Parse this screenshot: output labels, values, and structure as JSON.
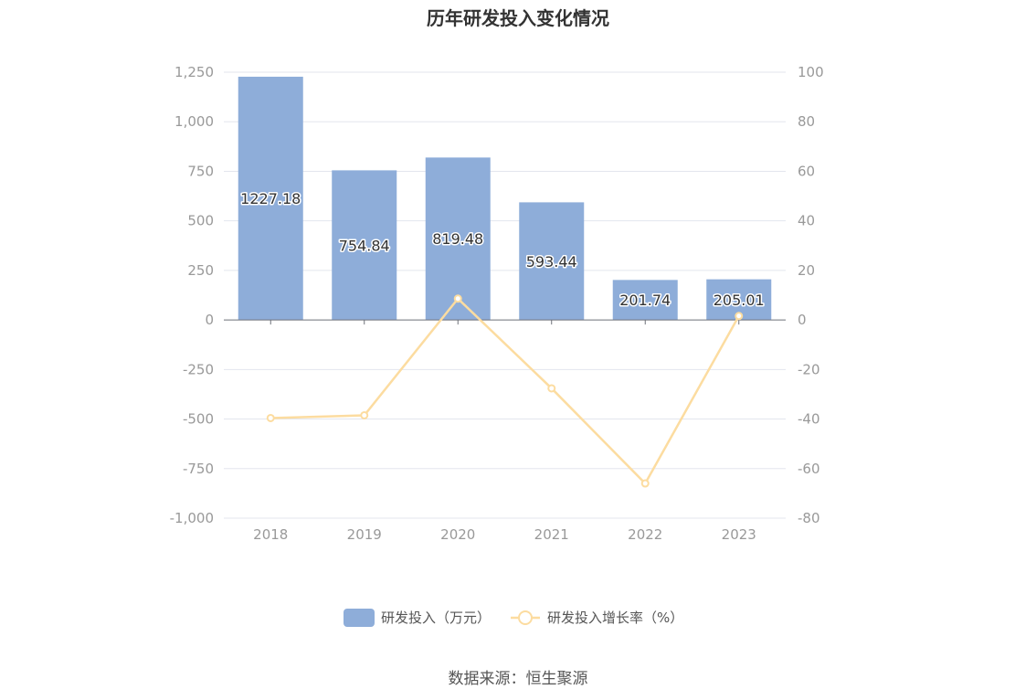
{
  "chart_data": {
    "type": "bar",
    "title": "历年研发投入变化情况",
    "categories": [
      "2018",
      "2019",
      "2020",
      "2021",
      "2022",
      "2023"
    ],
    "series": [
      {
        "name": "研发投入（万元）",
        "type": "bar",
        "axis": "left",
        "values": [
          1227.18,
          754.84,
          819.48,
          593.44,
          201.74,
          205.01
        ],
        "data_labels": [
          "1227.18",
          "754.84",
          "819.48",
          "593.44",
          "201.74",
          "205.01"
        ],
        "color": "#8eadd9"
      },
      {
        "name": "研发投入增长率（%）",
        "type": "line",
        "axis": "right",
        "values": [
          -39.6,
          -38.5,
          8.6,
          -27.6,
          -66.0,
          1.6
        ],
        "color": "#fcdca0"
      }
    ],
    "y_left": {
      "min": -1000,
      "max": 1250,
      "ticks": [
        1250,
        1000,
        750,
        500,
        250,
        0,
        -250,
        -500,
        -750,
        -1000
      ],
      "tick_labels": [
        "1,250",
        "1,000",
        "750",
        "500",
        "250",
        "0",
        "-250",
        "-500",
        "-750",
        "-1,000"
      ]
    },
    "y_right": {
      "min": -80,
      "max": 100,
      "ticks": [
        100,
        80,
        60,
        40,
        20,
        0,
        -20,
        -40,
        -60,
        -80
      ],
      "tick_labels": [
        "100",
        "80",
        "60",
        "40",
        "20",
        "0",
        "-20",
        "-40",
        "-60",
        "-80"
      ]
    },
    "grid": true,
    "legend_position": "bottom-center"
  },
  "source_text": "数据来源：恒生聚源"
}
